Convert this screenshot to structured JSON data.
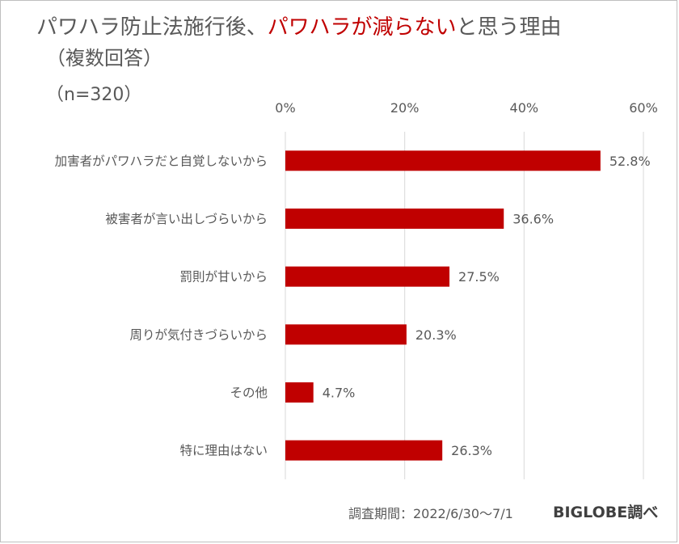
{
  "header": {
    "title_part1": "パワハラ防止法施行後、",
    "title_highlight": "パワハラが減らない",
    "title_part2": "と思う理由",
    "subtitle": "（複数回答）",
    "sample": "（n=320）"
  },
  "colors": {
    "bar": "#c00000",
    "highlight": "#c00000",
    "text": "#595959",
    "grid": "#d9d9d9"
  },
  "chart_data": {
    "type": "bar",
    "orientation": "horizontal",
    "categories": [
      "加害者がパワハラだと自覚しないから",
      "被害者が言い出しづらいから",
      "罰則が甘いから",
      "周りが気付きづらいから",
      "その他",
      "特に理由はない"
    ],
    "values": [
      52.8,
      36.6,
      27.5,
      20.3,
      4.7,
      26.3
    ],
    "value_labels": [
      "52.8%",
      "36.6%",
      "27.5%",
      "20.3%",
      "4.7%",
      "26.3%"
    ],
    "xlim": [
      0,
      60
    ],
    "xticks": [
      0,
      20,
      40,
      60
    ],
    "xtick_labels": [
      "0%",
      "20%",
      "40%",
      "60%"
    ],
    "grid": true,
    "legend": "none"
  },
  "footer": {
    "period": "調査期間：2022/6/30～7/1",
    "brand": "BIGLOBE調べ"
  }
}
